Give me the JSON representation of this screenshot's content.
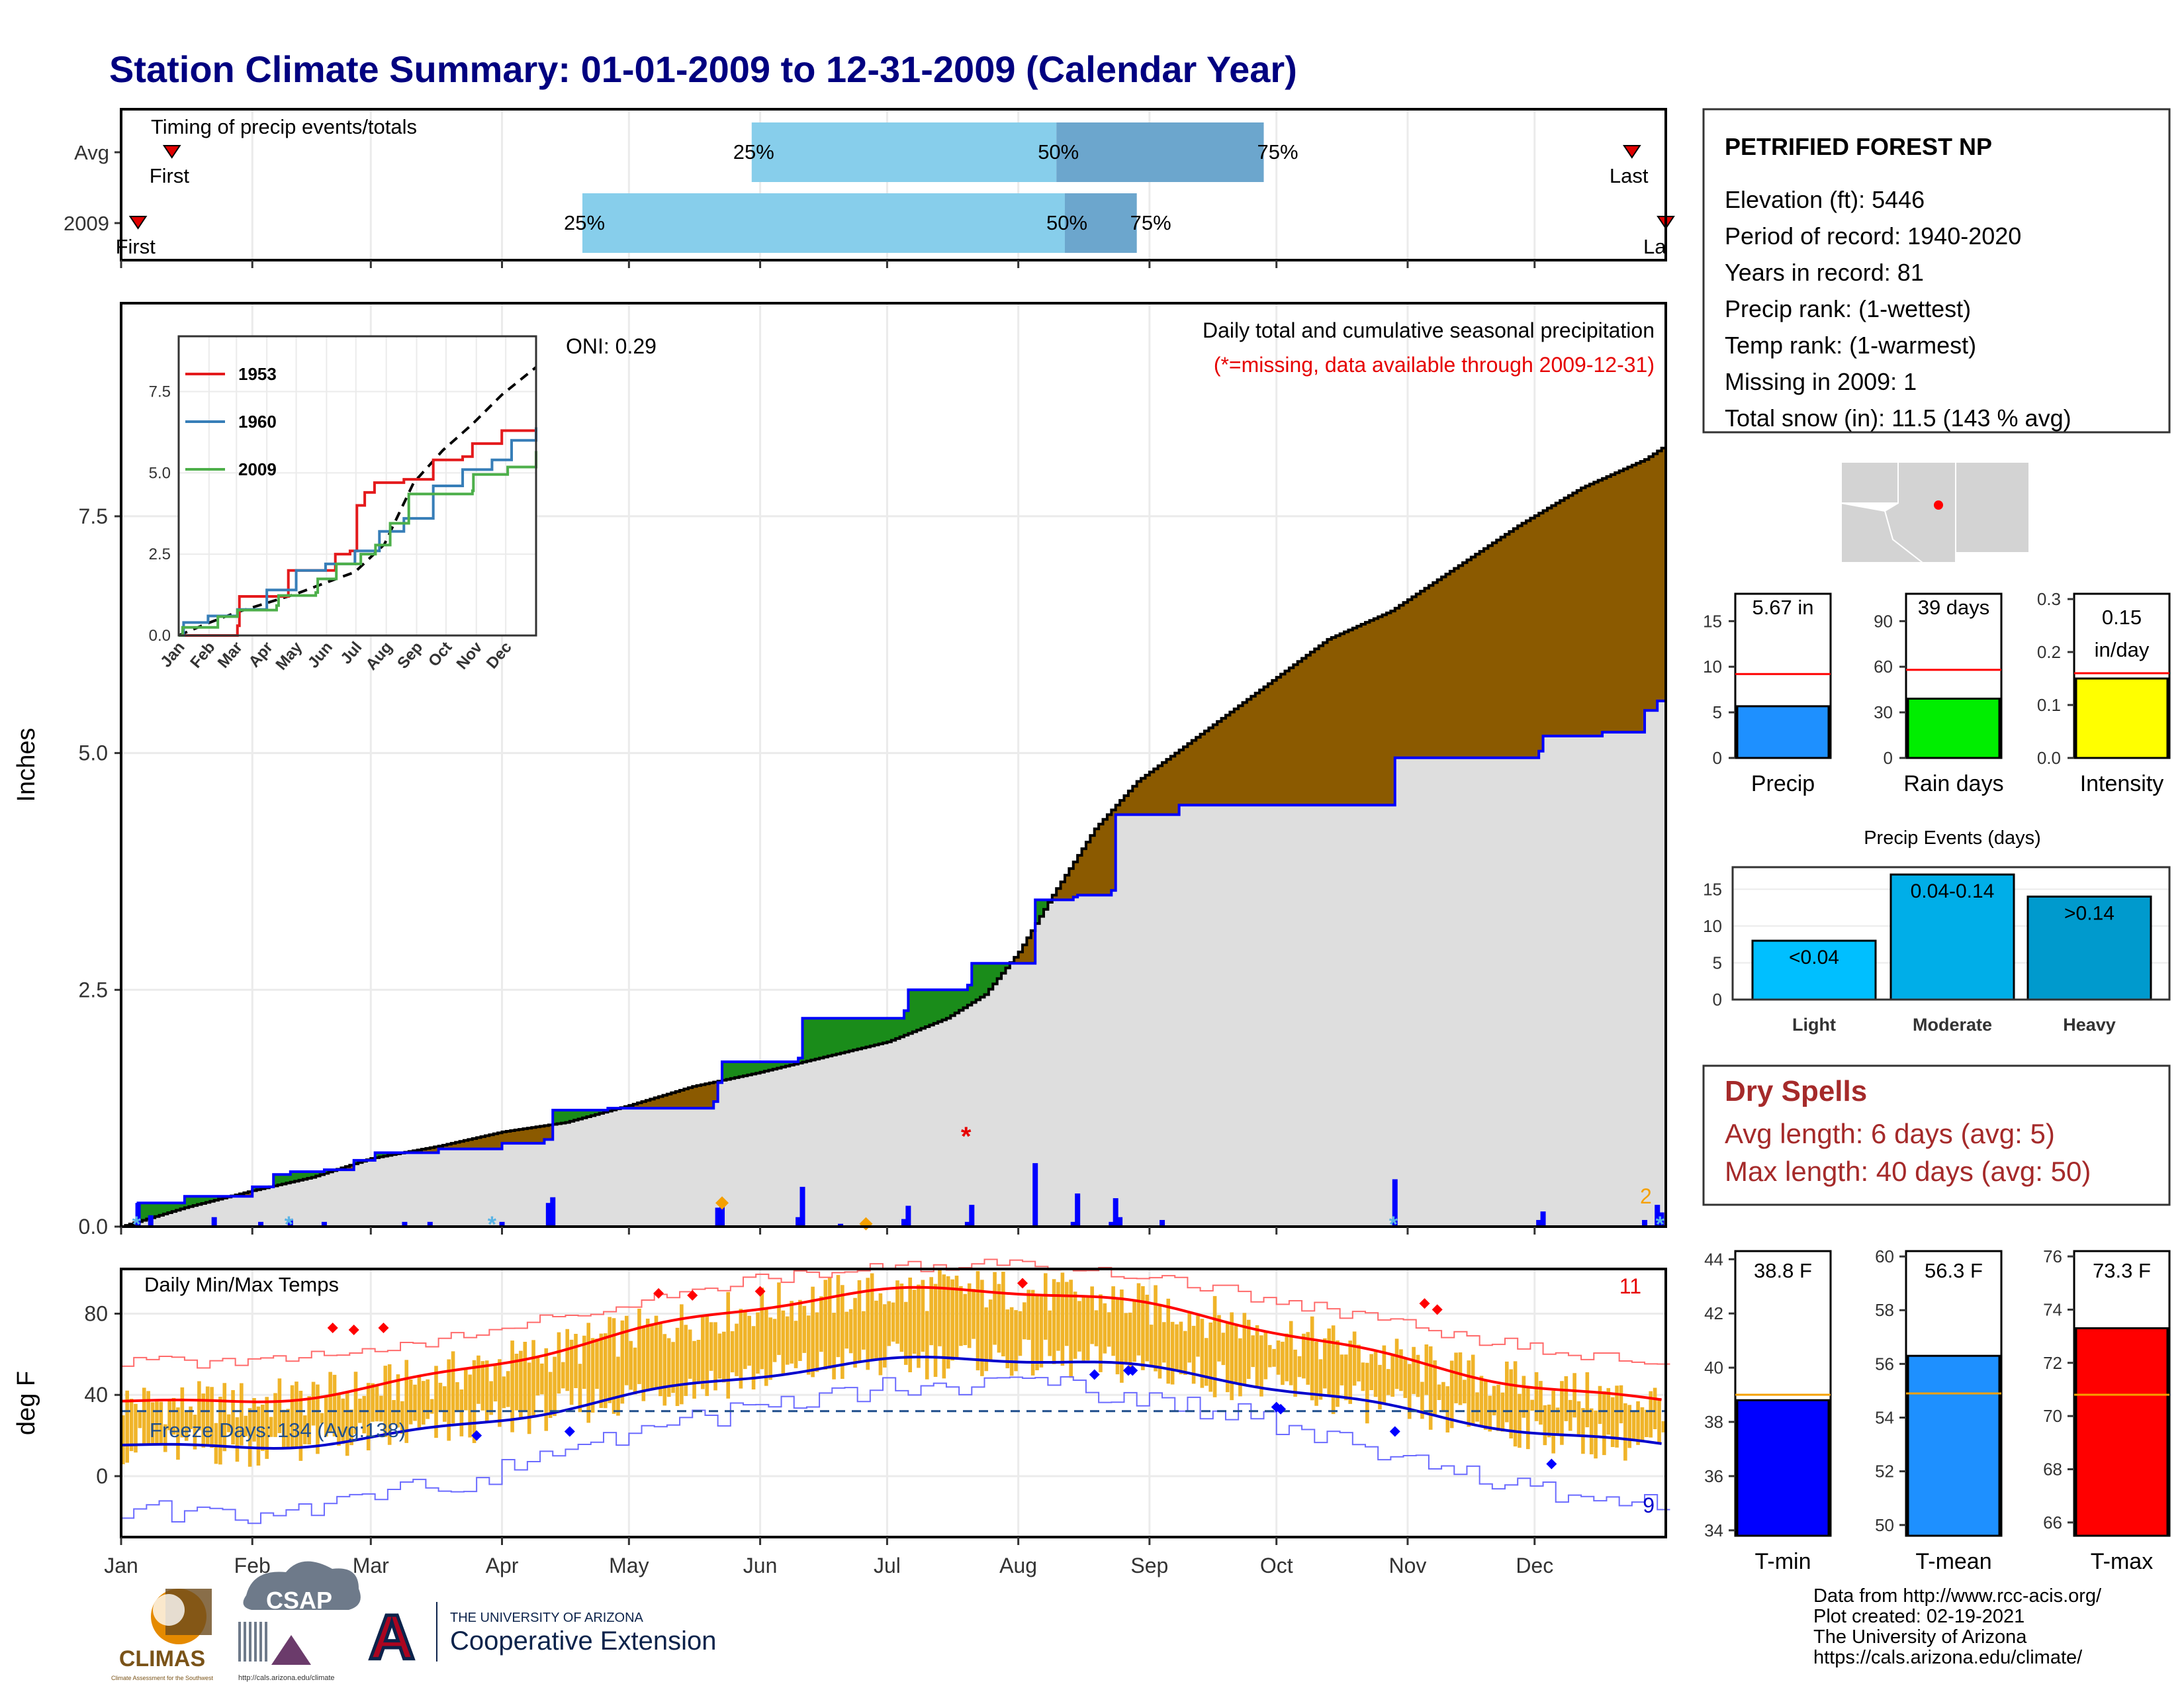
{
  "title": "Station Climate Summary: 01-01-2009 to 12-31-2009 (Calendar Year)",
  "timing": {
    "label": "Timing of precip events/totals",
    "rows": [
      {
        "name": "Avg",
        "first_label": "First",
        "last_label": "Last",
        "first_day": 12,
        "last_day": 357,
        "p25": 149,
        "p50": 221,
        "p75": 270,
        "labels": [
          "25%",
          "50%",
          "75%"
        ]
      },
      {
        "name": "2009",
        "first_label": "First",
        "last_label": "La",
        "first_day": 4,
        "last_day": 365,
        "p25": 109,
        "p50": 223,
        "p75": 240,
        "labels": [
          "25%",
          "50%",
          "75%"
        ]
      }
    ]
  },
  "precip": {
    "title": "Daily total and cumulative seasonal precipitation",
    "missing_note": "(*=missing, data available through 2009-12-31)",
    "ylabel": "Inches",
    "oni": "ONI: 0.29",
    "yticks": [
      "0.0",
      "2.5",
      "5.0",
      "7.5"
    ],
    "ylim": [
      0,
      9.75
    ],
    "corner_count": "2",
    "avg_cumulative": [
      [
        0,
        0
      ],
      [
        15,
        0.2
      ],
      [
        31,
        0.38
      ],
      [
        45,
        0.52
      ],
      [
        59,
        0.72
      ],
      [
        75,
        0.85
      ],
      [
        90,
        1.0
      ],
      [
        105,
        1.1
      ],
      [
        120,
        1.28
      ],
      [
        135,
        1.48
      ],
      [
        150,
        1.62
      ],
      [
        165,
        1.78
      ],
      [
        181,
        1.95
      ],
      [
        195,
        2.2
      ],
      [
        204,
        2.45
      ],
      [
        212,
        2.9
      ],
      [
        220,
        3.5
      ],
      [
        230,
        4.2
      ],
      [
        240,
        4.7
      ],
      [
        255,
        5.2
      ],
      [
        270,
        5.7
      ],
      [
        285,
        6.2
      ],
      [
        300,
        6.5
      ],
      [
        315,
        6.95
      ],
      [
        330,
        7.4
      ],
      [
        345,
        7.8
      ],
      [
        360,
        8.1
      ],
      [
        365,
        8.25
      ]
    ],
    "obs_cumulative": [
      [
        0,
        0
      ],
      [
        4,
        0.25
      ],
      [
        15,
        0.32
      ],
      [
        31,
        0.42
      ],
      [
        36,
        0.55
      ],
      [
        40,
        0.58
      ],
      [
        48,
        0.6
      ],
      [
        55,
        0.7
      ],
      [
        60,
        0.78
      ],
      [
        75,
        0.82
      ],
      [
        90,
        0.88
      ],
      [
        100,
        0.92
      ],
      [
        102,
        1.23
      ],
      [
        115,
        1.25
      ],
      [
        140,
        1.32
      ],
      [
        141,
        1.52
      ],
      [
        142,
        1.74
      ],
      [
        160,
        1.78
      ],
      [
        161,
        2.2
      ],
      [
        185,
        2.28
      ],
      [
        186,
        2.5
      ],
      [
        200,
        2.55
      ],
      [
        201,
        2.78
      ],
      [
        215,
        2.78
      ],
      [
        216,
        3.45
      ],
      [
        225,
        3.48
      ],
      [
        226,
        3.5
      ],
      [
        234,
        3.55
      ],
      [
        235,
        4.35
      ],
      [
        250,
        4.45
      ],
      [
        300,
        4.45
      ],
      [
        301,
        4.95
      ],
      [
        335,
        5.02
      ],
      [
        336,
        5.18
      ],
      [
        350,
        5.22
      ],
      [
        360,
        5.45
      ],
      [
        363,
        5.55
      ],
      [
        365,
        5.67
      ]
    ],
    "daily_bars": [
      [
        4,
        0.25
      ],
      [
        7,
        0.12
      ],
      [
        22,
        0.1
      ],
      [
        33,
        0.05
      ],
      [
        40,
        0.08
      ],
      [
        48,
        0.05
      ],
      [
        67,
        0.05
      ],
      [
        73,
        0.05
      ],
      [
        90,
        0.05
      ],
      [
        101,
        0.25
      ],
      [
        102,
        0.31
      ],
      [
        141,
        0.2
      ],
      [
        142,
        0.22
      ],
      [
        160,
        0.1
      ],
      [
        161,
        0.42
      ],
      [
        170,
        0.03
      ],
      [
        185,
        0.08
      ],
      [
        186,
        0.22
      ],
      [
        200,
        0.05
      ],
      [
        201,
        0.23
      ],
      [
        216,
        0.67
      ],
      [
        225,
        0.05
      ],
      [
        226,
        0.35
      ],
      [
        234,
        0.05
      ],
      [
        235,
        0.3
      ],
      [
        236,
        0.1
      ],
      [
        246,
        0.07
      ],
      [
        301,
        0.5
      ],
      [
        335,
        0.07
      ],
      [
        336,
        0.16
      ],
      [
        360,
        0.07
      ],
      [
        363,
        0.23
      ],
      [
        364,
        0.15
      ]
    ],
    "missing_markers": [
      [
        200,
        0.97
      ]
    ],
    "snow_markers": [
      4,
      40,
      88,
      301,
      364
    ],
    "hail_markers": [
      [
        142,
        0.25
      ],
      [
        176,
        0.03
      ]
    ]
  },
  "inset": {
    "series": [
      {
        "name": "1953",
        "color": "#e41a1c",
        "points": [
          [
            0,
            0
          ],
          [
            60,
            0.3
          ],
          [
            62,
            1.2
          ],
          [
            110,
            1.2
          ],
          [
            112,
            2.0
          ],
          [
            150,
            2.0
          ],
          [
            160,
            2.5
          ],
          [
            175,
            2.6
          ],
          [
            182,
            4.0
          ],
          [
            190,
            4.4
          ],
          [
            200,
            4.7
          ],
          [
            230,
            4.8
          ],
          [
            240,
            4.8
          ],
          [
            260,
            5.4
          ],
          [
            290,
            5.5
          ],
          [
            300,
            5.9
          ],
          [
            330,
            6.3
          ],
          [
            365,
            6.4
          ]
        ]
      },
      {
        "name": "1960",
        "color": "#377eb8",
        "points": [
          [
            0,
            0
          ],
          [
            5,
            0.4
          ],
          [
            30,
            0.6
          ],
          [
            60,
            0.8
          ],
          [
            90,
            1.4
          ],
          [
            120,
            2.0
          ],
          [
            150,
            2.2
          ],
          [
            180,
            2.6
          ],
          [
            200,
            2.6
          ],
          [
            205,
            3.2
          ],
          [
            230,
            3.6
          ],
          [
            260,
            4.6
          ],
          [
            290,
            5.1
          ],
          [
            320,
            5.4
          ],
          [
            340,
            6.0
          ],
          [
            365,
            6.4
          ]
        ]
      },
      {
        "name": "2009",
        "color": "#4daf4a",
        "points": [
          [
            0,
            0
          ],
          [
            4,
            0.25
          ],
          [
            40,
            0.58
          ],
          [
            60,
            0.78
          ],
          [
            100,
            0.92
          ],
          [
            102,
            1.23
          ],
          [
            140,
            1.32
          ],
          [
            142,
            1.74
          ],
          [
            161,
            2.2
          ],
          [
            186,
            2.5
          ],
          [
            201,
            2.78
          ],
          [
            216,
            3.45
          ],
          [
            235,
            4.35
          ],
          [
            300,
            4.45
          ],
          [
            301,
            4.95
          ],
          [
            336,
            5.18
          ],
          [
            365,
            5.67
          ]
        ]
      }
    ],
    "avg_line": [
      [
        0,
        0
      ],
      [
        30,
        0.38
      ],
      [
        60,
        0.72
      ],
      [
        90,
        1.0
      ],
      [
        120,
        1.28
      ],
      [
        150,
        1.62
      ],
      [
        180,
        1.95
      ],
      [
        210,
        2.8
      ],
      [
        240,
        4.7
      ],
      [
        270,
        5.7
      ],
      [
        300,
        6.5
      ],
      [
        330,
        7.4
      ],
      [
        365,
        8.25
      ]
    ],
    "yticks": [
      "0.0",
      "2.5",
      "5.0",
      "7.5"
    ],
    "xticks": [
      "Jan",
      "Feb",
      "Mar",
      "Apr",
      "May",
      "Jun",
      "Jul",
      "Aug",
      "Sep",
      "Oct",
      "Nov",
      "Dec"
    ]
  },
  "temps": {
    "title": "Daily Min/Max Temps",
    "ylabel": "deg F",
    "freeze": "Freeze Days: 134 (Avg:138)",
    "yticks": [
      "0",
      "40",
      "80"
    ],
    "record_high_count": "11",
    "record_low_count": "9",
    "freeze_line": 32
  },
  "months": [
    "Jan",
    "Feb",
    "Mar",
    "Apr",
    "May",
    "Jun",
    "Jul",
    "Aug",
    "Sep",
    "Oct",
    "Nov",
    "Dec"
  ],
  "station": {
    "name": "PETRIFIED FOREST NP",
    "lines": [
      "Elevation (ft): 5446",
      "Period of record: 1940-2020",
      "Years in record: 81",
      "Precip rank:  (1-wettest)",
      "Temp rank:  (1-warmest)",
      "Missing in 2009: 1",
      "Total snow (in): 11.5 (143 % avg)"
    ]
  },
  "mini_bars": [
    {
      "label": "Precip",
      "value": 5.67,
      "value_text": "5.67 in",
      "avg": 9.2,
      "ymax": 18,
      "ticks": [
        "0",
        "5",
        "10",
        "15"
      ],
      "tick_vals": [
        0,
        5,
        10,
        15
      ],
      "color": "#1e90ff"
    },
    {
      "label": "Rain days",
      "value": 39,
      "value_text": "39 days",
      "avg": 58,
      "ymax": 108,
      "ticks": [
        "0",
        "30",
        "60",
        "90"
      ],
      "tick_vals": [
        0,
        30,
        60,
        90
      ],
      "color": "#00ee00"
    },
    {
      "label": "Intensity",
      "value": 0.15,
      "value_text": "0.15 in/day",
      "avg": 0.16,
      "ymax": 0.31,
      "ticks": [
        "0.0",
        "0.1",
        "0.2",
        "0.3"
      ],
      "tick_vals": [
        0,
        0.1,
        0.2,
        0.3
      ],
      "color": "#ffff00"
    }
  ],
  "events": {
    "title": "Precip Events (days)",
    "categories": [
      "Light",
      "Moderate",
      "Heavy"
    ],
    "values": [
      8,
      17,
      14
    ],
    "value_labels": [
      "<0.04",
      "0.04-0.14",
      ">0.14"
    ],
    "ticks": [
      "0",
      "5",
      "10",
      "15"
    ],
    "tick_vals": [
      0,
      5,
      10,
      15
    ],
    "colors": [
      "#00bfff",
      "#00aee8",
      "#009acd"
    ]
  },
  "dry_spells": {
    "title": "Dry Spells",
    "lines": [
      "Avg length: 6 days (avg: 5)",
      "Max length: 40 days (avg: 50)"
    ]
  },
  "temp_bars": [
    {
      "label": "T-min",
      "value": 38.8,
      "value_text": "38.8 F",
      "avg": 39.0,
      "ymin": 33.8,
      "ymax": 44.3,
      "ticks": [
        "34",
        "36",
        "38",
        "40",
        "42",
        "44"
      ],
      "tick_vals": [
        34,
        36,
        38,
        40,
        42,
        44
      ],
      "color": "#0000ff"
    },
    {
      "label": "T-mean",
      "value": 56.3,
      "value_text": "56.3 F",
      "avg": 54.9,
      "ymin": 49.6,
      "ymax": 60.2,
      "ticks": [
        "50",
        "52",
        "54",
        "56",
        "58",
        "60"
      ],
      "tick_vals": [
        50,
        52,
        54,
        56,
        58,
        60
      ],
      "color": "#1e90ff"
    },
    {
      "label": "T-max",
      "value": 73.3,
      "value_text": "73.3 F",
      "avg": 70.8,
      "ymin": 65.5,
      "ymax": 76.2,
      "ticks": [
        "66",
        "68",
        "70",
        "72",
        "74",
        "76"
      ],
      "tick_vals": [
        66,
        68,
        70,
        72,
        74,
        76
      ],
      "color": "#ff0000"
    }
  ],
  "footer": {
    "lines": [
      "Data from http://www.rcc-acis.org/",
      "Plot created: 02-19-2021",
      "The University of Arizona",
      "https://cals.arizona.edu/climate/"
    ],
    "logo_climas": "CLIMAS",
    "logo_climas_sub": "Climate Assessment for the Southwest",
    "logo_csap": "CSAP",
    "logo_csap_url": "http://cals.arizona.edu/climate",
    "ua_line1": "THE UNIVERSITY OF ARIZONA",
    "ua_line2": "Cooperative Extension",
    "ua_letter": "A"
  },
  "colors": {
    "title": "#000080",
    "cumulative_fill": "#8b5a00",
    "obs_line": "#0000ff",
    "avg_line": "#000000",
    "bar": "#f0b429",
    "dry_spell": "#a52a2a",
    "missing": "#e60000"
  }
}
